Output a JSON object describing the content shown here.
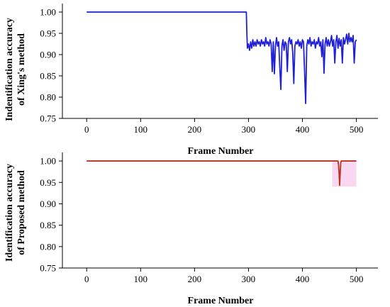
{
  "chart_data": [
    {
      "type": "line",
      "xlabel": "Frame Number",
      "ylabel_lines": [
        "Indentification accuracy",
        "of Xing's method"
      ],
      "xlim": [
        -45,
        540
      ],
      "ylim": [
        0.75,
        1.02
      ],
      "xticks": [
        0,
        100,
        200,
        300,
        400,
        500
      ],
      "xtick_labels": [
        "0",
        "100",
        "200",
        "300",
        "400",
        "500"
      ],
      "yticks": [
        0.75,
        0.8,
        0.85,
        0.9,
        0.95,
        1.0
      ],
      "ytick_labels": [
        "0.75",
        "0.80",
        "0.85",
        "0.90",
        "0.95",
        "1.00"
      ],
      "grid": false,
      "series": [
        {
          "color": "#1f1fd6",
          "points": [
            [
              0,
              1.0
            ],
            [
              296,
              1.0
            ],
            [
              297,
              0.95
            ],
            [
              298,
              0.915
            ],
            [
              300,
              0.925
            ],
            [
              302,
              0.91
            ],
            [
              304,
              0.93
            ],
            [
              306,
              0.915
            ],
            [
              308,
              0.935
            ],
            [
              310,
              0.92
            ],
            [
              312,
              0.93
            ],
            [
              314,
              0.92
            ],
            [
              316,
              0.935
            ],
            [
              318,
              0.925
            ],
            [
              320,
              0.93
            ],
            [
              322,
              0.92
            ],
            [
              324,
              0.935
            ],
            [
              326,
              0.925
            ],
            [
              328,
              0.93
            ],
            [
              330,
              0.92
            ],
            [
              332,
              0.94
            ],
            [
              334,
              0.925
            ],
            [
              336,
              0.93
            ],
            [
              338,
              0.92
            ],
            [
              340,
              0.935
            ],
            [
              342,
              0.925
            ],
            [
              344,
              0.86
            ],
            [
              346,
              0.93
            ],
            [
              348,
              0.855
            ],
            [
              350,
              0.92
            ],
            [
              352,
              0.94
            ],
            [
              354,
              0.92
            ],
            [
              356,
              0.93
            ],
            [
              358,
              0.87
            ],
            [
              360,
              0.818
            ],
            [
              362,
              0.92
            ],
            [
              364,
              0.935
            ],
            [
              366,
              0.91
            ],
            [
              368,
              0.93
            ],
            [
              370,
              0.925
            ],
            [
              372,
              0.86
            ],
            [
              374,
              0.93
            ],
            [
              376,
              0.94
            ],
            [
              378,
              0.925
            ],
            [
              380,
              0.935
            ],
            [
              382,
              0.905
            ],
            [
              384,
              0.832
            ],
            [
              386,
              0.92
            ],
            [
              388,
              0.93
            ],
            [
              390,
              0.925
            ],
            [
              392,
              0.935
            ],
            [
              394,
              0.92
            ],
            [
              396,
              0.93
            ],
            [
              398,
              0.915
            ],
            [
              400,
              0.935
            ],
            [
              402,
              0.93
            ],
            [
              404,
              0.86
            ],
            [
              406,
              0.785
            ],
            [
              408,
              0.92
            ],
            [
              410,
              0.935
            ],
            [
              412,
              0.925
            ],
            [
              414,
              0.94
            ],
            [
              416,
              0.92
            ],
            [
              418,
              0.93
            ],
            [
              420,
              0.925
            ],
            [
              422,
              0.935
            ],
            [
              424,
              0.915
            ],
            [
              426,
              0.93
            ],
            [
              428,
              0.925
            ],
            [
              430,
              0.94
            ],
            [
              432,
              0.92
            ],
            [
              434,
              0.93
            ],
            [
              436,
              0.895
            ],
            [
              438,
              0.935
            ],
            [
              440,
              0.856
            ],
            [
              442,
              0.925
            ],
            [
              444,
              0.94
            ],
            [
              446,
              0.92
            ],
            [
              448,
              0.935
            ],
            [
              450,
              0.92
            ],
            [
              452,
              0.93
            ],
            [
              454,
              0.945
            ],
            [
              456,
              0.92
            ],
            [
              458,
              0.935
            ],
            [
              460,
              0.88
            ],
            [
              462,
              0.93
            ],
            [
              464,
              0.945
            ],
            [
              466,
              0.915
            ],
            [
              468,
              0.938
            ],
            [
              470,
              0.92
            ],
            [
              472,
              0.935
            ],
            [
              474,
              0.88
            ],
            [
              476,
              0.94
            ],
            [
              478,
              0.925
            ],
            [
              480,
              0.935
            ],
            [
              482,
              0.948
            ],
            [
              484,
              0.925
            ],
            [
              486,
              0.95
            ],
            [
              488,
              0.93
            ],
            [
              490,
              0.94
            ],
            [
              492,
              0.93
            ],
            [
              494,
              0.945
            ],
            [
              496,
              0.88
            ],
            [
              498,
              0.93
            ],
            [
              500,
              0.935
            ]
          ]
        }
      ]
    },
    {
      "type": "line",
      "xlabel": "Frame Number",
      "ylabel_lines": [
        "Identification accuracy",
        "of Proposed method"
      ],
      "xlim": [
        -45,
        540
      ],
      "ylim": [
        0.75,
        1.02
      ],
      "xticks": [
        0,
        100,
        200,
        300,
        400,
        500
      ],
      "xtick_labels": [
        "0",
        "100",
        "200",
        "300",
        "400",
        "500"
      ],
      "yticks": [
        0.75,
        0.8,
        0.85,
        0.9,
        0.95,
        1.0
      ],
      "ytick_labels": [
        "0.75",
        "0.80",
        "0.85",
        "0.90",
        "0.95",
        "1.00"
      ],
      "grid": false,
      "series": [
        {
          "color": "#b8321e",
          "points": [
            [
              0,
              1.0
            ],
            [
              466,
              1.0
            ],
            [
              467,
              0.99
            ],
            [
              468,
              0.97
            ],
            [
              469,
              0.943
            ],
            [
              470,
              0.97
            ],
            [
              471,
              0.995
            ],
            [
              472,
              1.0
            ],
            [
              500,
              1.0
            ]
          ]
        }
      ],
      "highlights": [
        {
          "x": [
            455,
            500
          ],
          "y": [
            0.94,
            1.0
          ],
          "color": "#f2b8e6"
        }
      ]
    }
  ]
}
